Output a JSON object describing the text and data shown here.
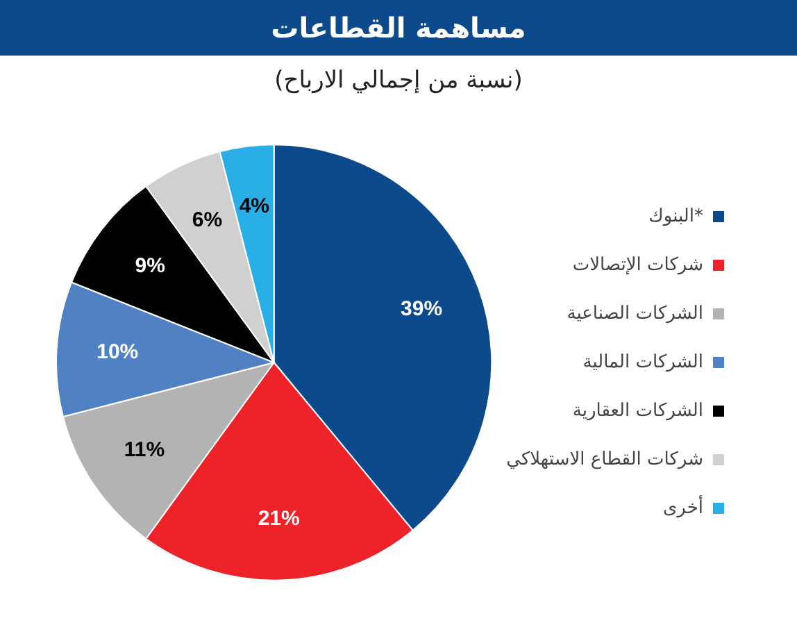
{
  "chart_data": {
    "type": "pie",
    "title": "مساهمة القطاعات",
    "subtitle": "(نسبة من إجمالي الارباح)",
    "categories": [
      "البنوك*",
      "شركات الإتصالات",
      "الشركات الصناعية",
      "الشركات المالية",
      "الشركات العقارية",
      "شركات القطاع الاستهلاكي",
      "أخرى"
    ],
    "values": [
      39,
      21,
      11,
      10,
      9,
      6,
      4
    ],
    "colors": [
      "#0d4a8c",
      "#ee2229",
      "#b3b3b3",
      "#4f81c3",
      "#000000",
      "#d0d0d0",
      "#29aee6"
    ],
    "value_labels": [
      "39%",
      "21%",
      "11%",
      "10%",
      "9%",
      "6%",
      "4%"
    ],
    "legend": "right"
  }
}
